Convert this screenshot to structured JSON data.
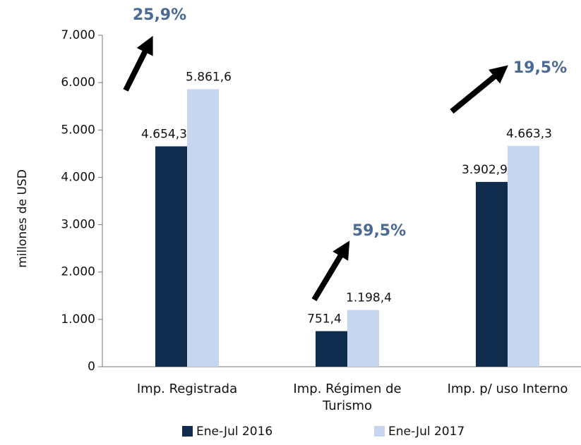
{
  "chart_data": {
    "type": "bar",
    "y_label": "millones de  USD",
    "categories": [
      "Imp. Registrada",
      "Imp. Régimen de Turismo",
      "Imp. p/ uso Interno"
    ],
    "series": [
      {
        "name": "Ene-Jul 2016",
        "color": "#0f2c4c",
        "values": [
          4654.3,
          751.4,
          3902.9
        ],
        "value_labels": [
          "4.654,3",
          "751,4",
          "3.902,9"
        ]
      },
      {
        "name": "Ene-Jul 2017",
        "color": "#c6d6ee",
        "values": [
          5861.6,
          1198.4,
          4663.3
        ],
        "value_labels": [
          "5.861,6",
          "1.198,4",
          "4.663,3"
        ]
      }
    ],
    "annotations": [
      "25,9%",
      "59,5%",
      "19,5%"
    ],
    "ylim": [
      0,
      7000
    ],
    "yticks": [
      0,
      {
        "value": 1000,
        "label": "1.000"
      },
      {
        "value": 2000,
        "label": "2.000"
      },
      {
        "value": 3000,
        "label": "3.000"
      },
      {
        "value": 4000,
        "label": "4.000"
      },
      {
        "value": 5000,
        "label": "5.000"
      },
      {
        "value": 6000,
        "label": "6.000"
      },
      {
        "value": 7000,
        "label": "7.000"
      }
    ],
    "grid": false
  }
}
